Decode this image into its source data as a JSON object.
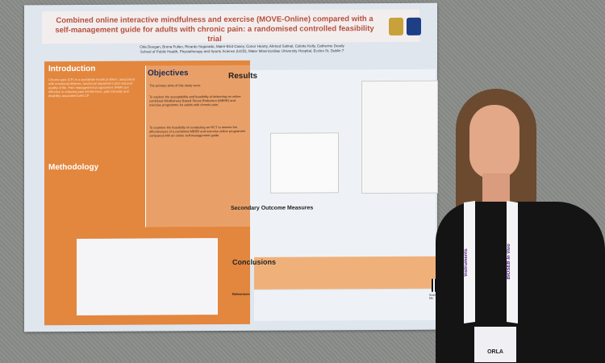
{
  "poster": {
    "title": "Combined online interactive mindfulness and exercise (MOVE-Online) compared with a self-management guide for adults with chronic pain: a randomised controlled feasibility trial",
    "authors": "Orla Deegan, Brona Fullen, Ricardo Segurado, Mairé-Bríd Casey, Conor Hearty, Ahmed Salmal, Colette Kelly, Catherine Doody",
    "affiliation": "School of Public Health, Physiotherapy and Sports Science (UCD), Mater Misericordiae University Hospital, Eccles St, Dublin 7",
    "sections": {
      "introduction": "Introduction",
      "objectives": "Objectives",
      "methodology": "Methodology",
      "results": "Results",
      "secondary": "Secondary Outcome Measures",
      "conclusions": "Conclusions",
      "references": "References"
    },
    "objectives_lead": "The primary aims of this study were:",
    "objective_1": "To explore the acceptability and feasibility of delivering an online combined Mindfulness Based Stress Reduction (MBSR) and exercise programme for adults with chronic pain.",
    "objective_2": "To examine the feasibility of conducting an RCT to assess the effectiveness of a combined MBSR and exercise online programme compared with an online self-management guide.",
    "intro_text": "Chronic pain (CP) is a worldwide health problem, associated with emotional distress, functional impairment and reduced quality of life. Pain management programmes (PMP) are effective in reducing pain interference, pain intensity and disability associated with CP.",
    "qr_label": "Scan Me"
  },
  "lanyard": {
    "left": "Instruments",
    "right": "BIOSEB In Vivo"
  },
  "badge": {
    "name": "ORLA"
  }
}
